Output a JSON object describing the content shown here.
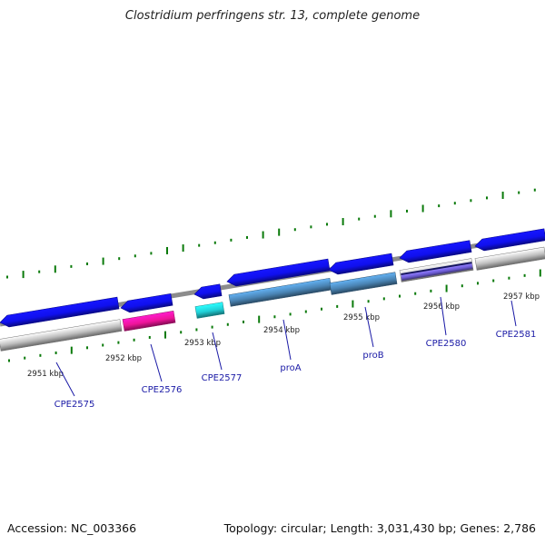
{
  "title": "Clostridium perfringens str. 13, complete genome",
  "footer": {
    "accession": "Accession: NC_003366",
    "topology": "Topology: circular; Length: 3,031,430 bp; Genes: 2,786"
  },
  "colors": {
    "gene_arrow": "#1010ee",
    "backbone": "#8c8c8c",
    "tick": "#0a7a0a",
    "label": "#1a1aa6",
    "cds_grey": "#bdbdbd",
    "cds_magenta": "#ee1499",
    "cds_cyan": "#21cfd6",
    "cds_steelblue": "#4a84b4",
    "cds_purple": "#6a5ad0"
  },
  "ruler": [
    {
      "label": "2951 kbp"
    },
    {
      "label": "2952 kbp"
    },
    {
      "label": "2953 kbp"
    },
    {
      "label": "2954 kbp"
    },
    {
      "label": "2955 kbp"
    },
    {
      "label": "2956 kbp"
    },
    {
      "label": "2957 kbp"
    }
  ],
  "genes": [
    {
      "label": "CPE2575",
      "strand": "reverse"
    },
    {
      "label": "CPE2576",
      "strand": "reverse"
    },
    {
      "label": "CPE2577",
      "strand": "reverse"
    },
    {
      "label": "proA",
      "strand": "reverse"
    },
    {
      "label": "proB",
      "strand": "reverse"
    },
    {
      "label": "CPE2580",
      "strand": "reverse"
    },
    {
      "label": "CPE2581",
      "strand": "reverse"
    }
  ]
}
